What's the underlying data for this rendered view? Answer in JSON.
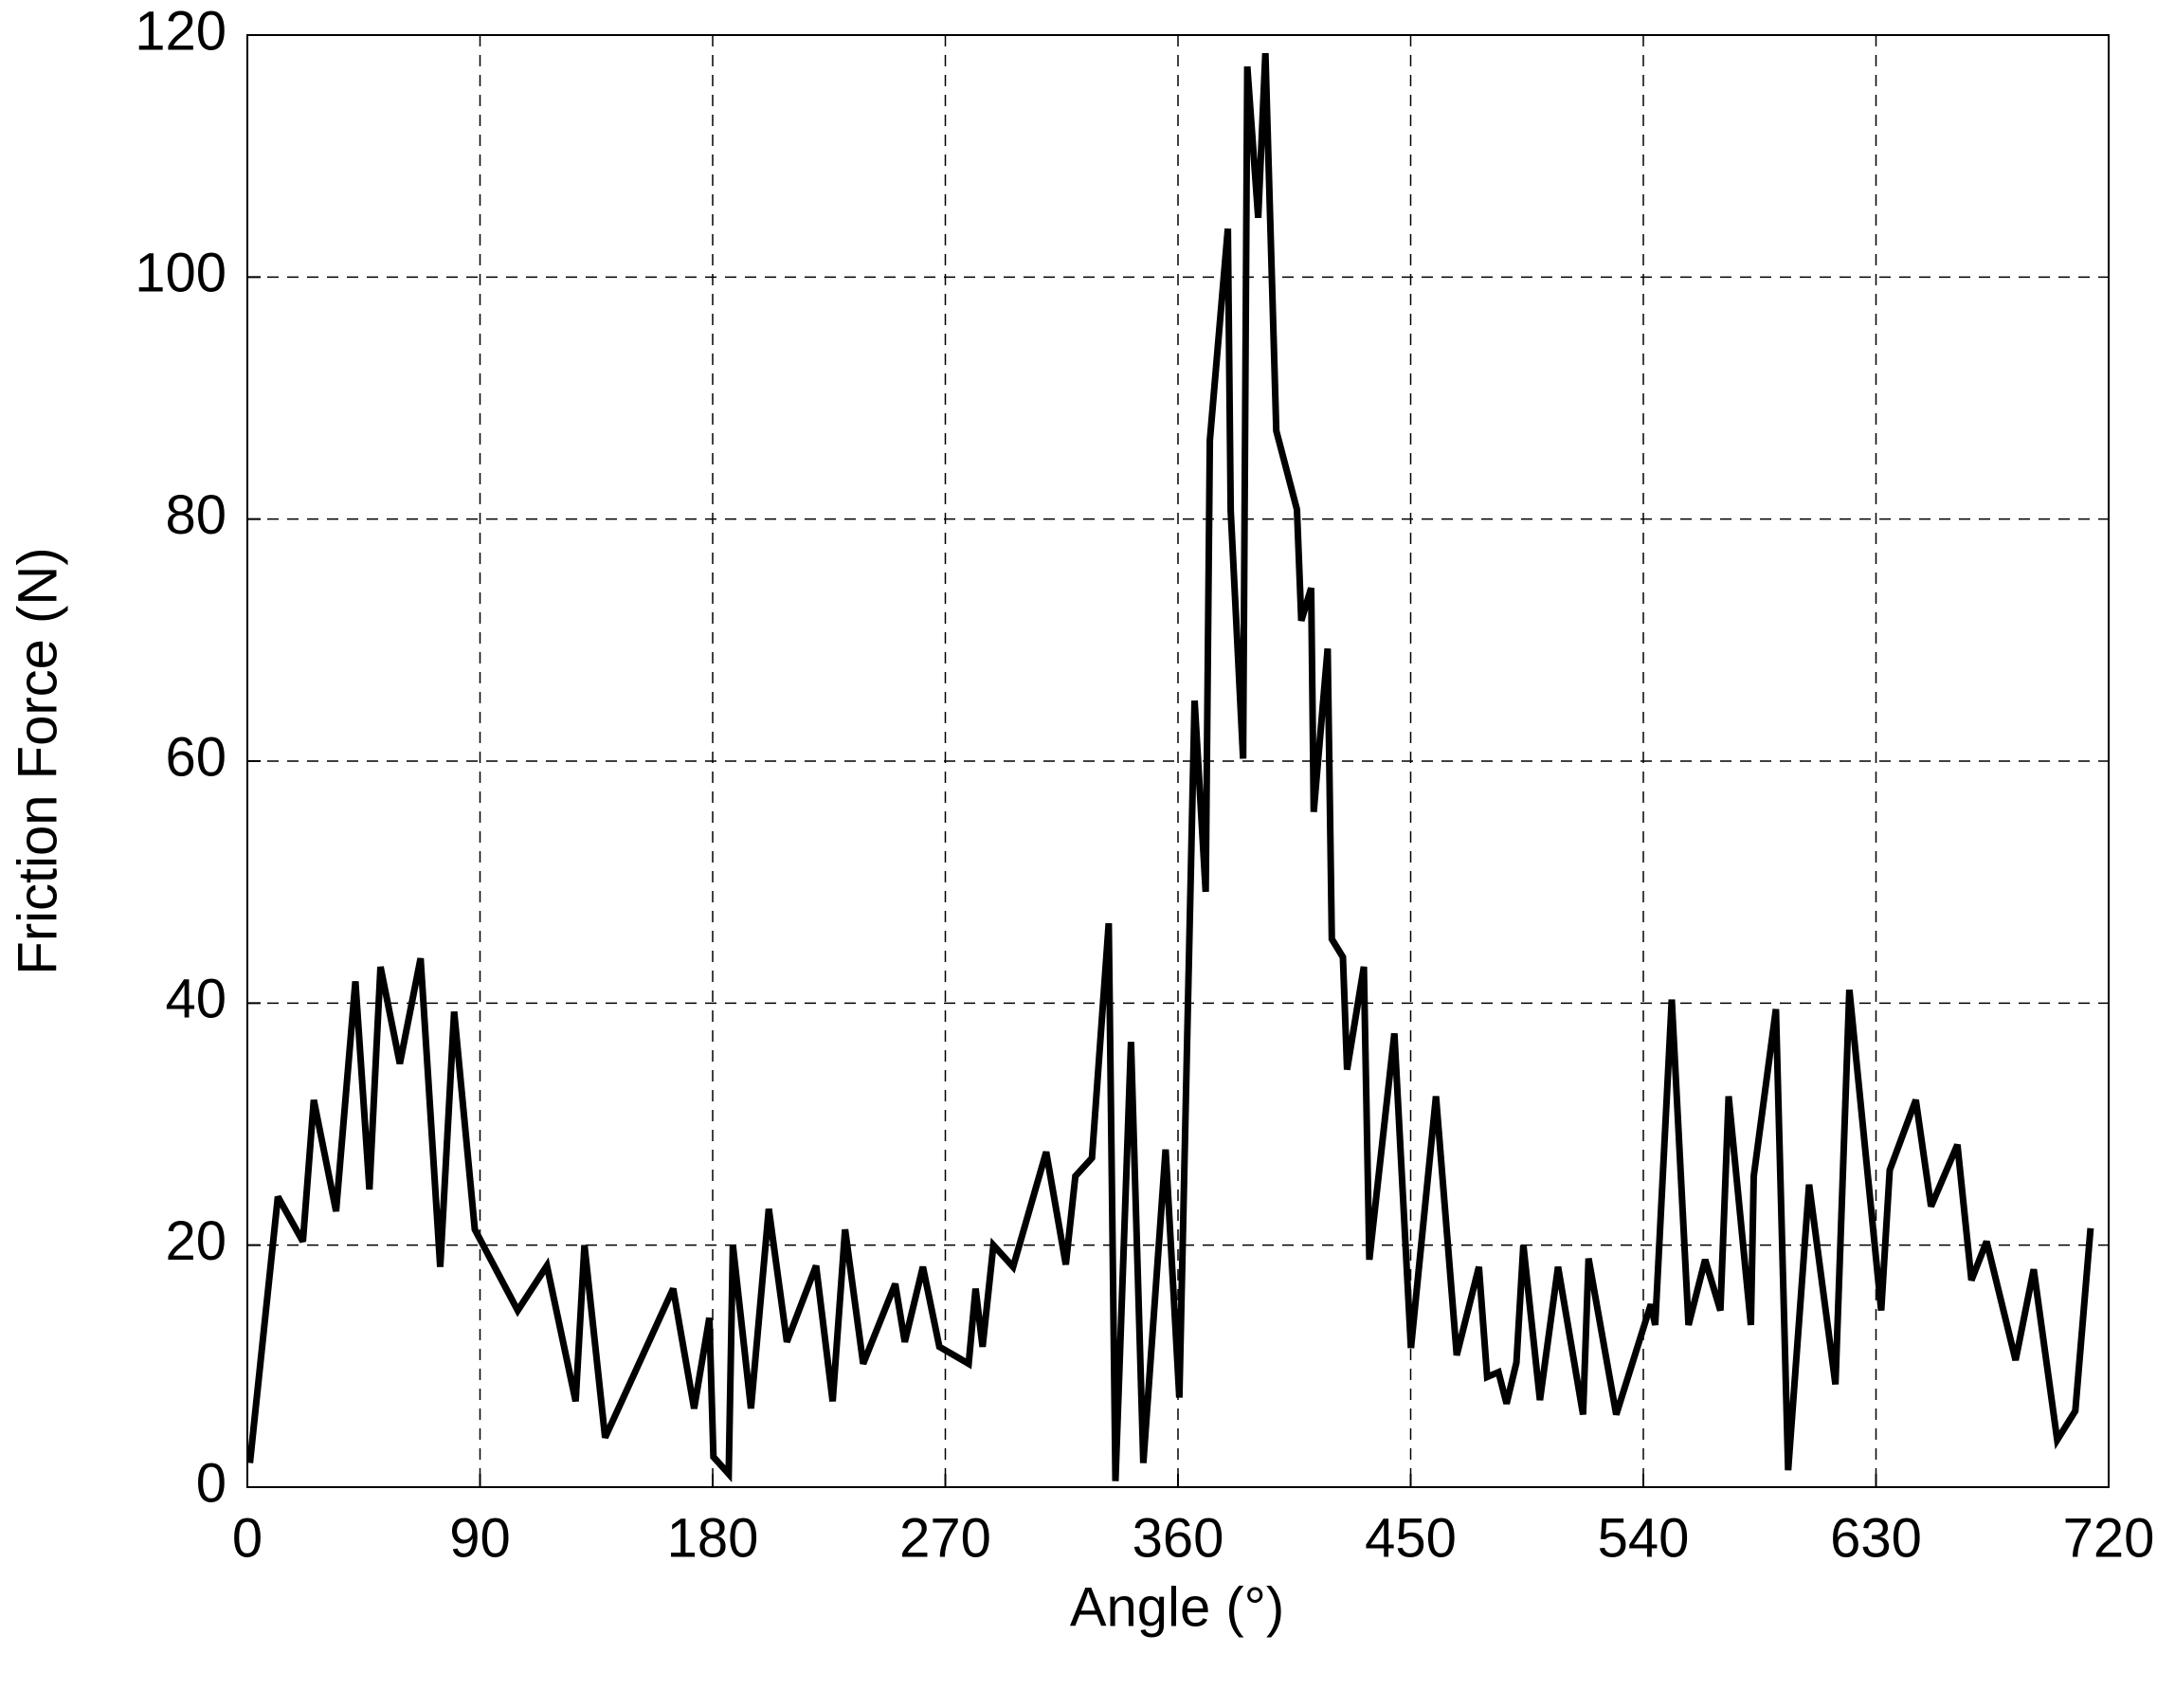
{
  "chart_data": {
    "type": "line",
    "xlabel": "Angle (°)",
    "ylabel": "Friction Force (N)",
    "xlim": [
      0,
      720
    ],
    "xticks": [
      0,
      90,
      180,
      270,
      360,
      450,
      540,
      630,
      720
    ],
    "ylim": [
      0,
      120
    ],
    "yticks": [
      0,
      20,
      40,
      60,
      80,
      100,
      120
    ],
    "grid": true,
    "series": [
      {
        "color": "#000000",
        "x": [
          1,
          11.8,
          21.5,
          25.7,
          34.3,
          41.8,
          47.2,
          51.5,
          59,
          67,
          74.6,
          80,
          88,
          104.6,
          115.9,
          127,
          130.4,
          138.4,
          164.7,
          172.8,
          178.7,
          180.3,
          186.2,
          187.8,
          194.8,
          201.7,
          208.7,
          220,
          226.4,
          231.2,
          238.2,
          250.6,
          254.3,
          261.3,
          267.7,
          279,
          281.7,
          284.4,
          288.6,
          296.2,
          309,
          316.6,
          320.3,
          326.7,
          333.2,
          335.8,
          341.8,
          346.6,
          355.2,
          360.5,
          366.4,
          370.7,
          372.3,
          379.3,
          380.4,
          385.2,
          386.8,
          391,
          393.8,
          398,
          406,
          407.7,
          411.5,
          412.5,
          417.9,
          419.5,
          423.8,
          425.4,
          431.9,
          434,
          443.7,
          450.1,
          459.8,
          467.8,
          476.4,
          479.6,
          484,
          487.1,
          490.9,
          493.6,
          500,
          507,
          516.7,
          518.8,
          529.5,
          542.9,
          544.6,
          551,
          557.5,
          563.9,
          569.8,
          573,
          581.6,
          582.7,
          591.3,
          596,
          604.1,
          614.3,
          619.7,
          632,
          635.3,
          645.4,
          651.3,
          661.5,
          666.9,
          672.8,
          684,
          691,
          700.1,
          707.1,
          713
        ],
        "values": [
          2,
          24,
          20.3,
          32,
          22.8,
          41.8,
          24.6,
          43,
          35,
          43.7,
          18.2,
          39.3,
          21.3,
          14.6,
          18.3,
          7.1,
          20,
          4.1,
          16.4,
          6.5,
          14,
          2.5,
          1.1,
          20,
          6.5,
          23,
          12,
          18.3,
          7.1,
          21.3,
          10.2,
          16.8,
          12,
          18.2,
          11.6,
          10.2,
          16.4,
          11.6,
          20,
          18.2,
          27.7,
          18.4,
          25.7,
          27.2,
          46.6,
          0.5,
          36.8,
          2,
          27.9,
          7.4,
          65,
          49.2,
          86.5,
          104,
          80.7,
          60.2,
          117.4,
          104.9,
          118.5,
          87.3,
          80.8,
          71.6,
          74.3,
          55.8,
          69.3,
          45.3,
          43.8,
          34.5,
          43,
          18.8,
          37.5,
          11.5,
          32.3,
          10.9,
          18.2,
          9.1,
          9.5,
          6.9,
          10.3,
          20,
          7.2,
          18.2,
          6,
          18.9,
          6,
          15.1,
          13.4,
          40.3,
          13.4,
          18.8,
          14.6,
          32.3,
          13.4,
          25.7,
          39.5,
          1.4,
          25,
          8.5,
          41.1,
          14.6,
          26.2,
          32,
          23.2,
          28.3,
          17.1,
          20.3,
          10.5,
          18,
          3.9,
          6.3,
          21.4
        ]
      }
    ]
  }
}
